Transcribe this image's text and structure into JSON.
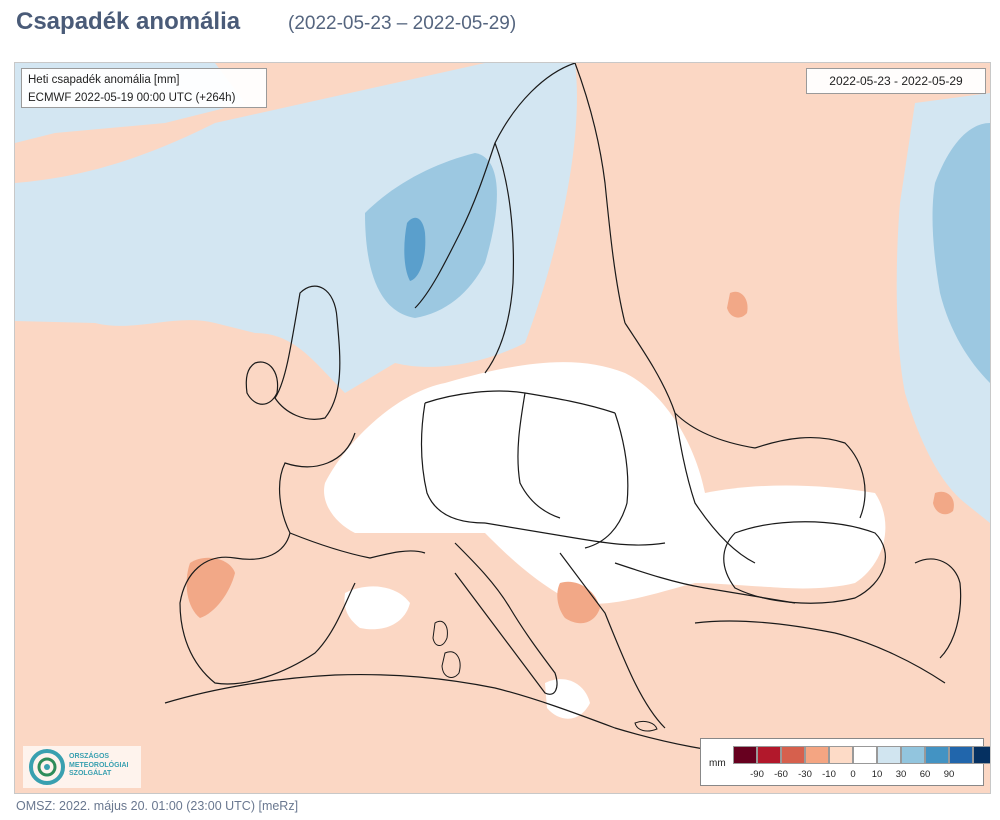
{
  "header": {
    "title": "Csapadék anomália",
    "subtitle": "(2022-05-23 – 2022-05-29)"
  },
  "map": {
    "info_line1": "Heti csapadék anomália [mm]",
    "info_line2": "ECMWF 2022-05-19 00:00 UTC (+264h)",
    "date_range": "2022-05-23 - 2022-05-29"
  },
  "legend": {
    "unit": "mm",
    "items": [
      {
        "label": "-90",
        "color": "#67001f"
      },
      {
        "label": "-60",
        "color": "#b2182b"
      },
      {
        "label": "-30",
        "color": "#d6604d"
      },
      {
        "label": "-10",
        "color": "#f4a582"
      },
      {
        "label": "0",
        "color": "#fddbc7"
      },
      {
        "label": "10",
        "color": "#ffffff"
      },
      {
        "label": "30",
        "color": "#d1e5f0"
      },
      {
        "label": "60",
        "color": "#92c5de"
      },
      {
        "label": "90",
        "color": "#4393c3"
      },
      {
        "label": "",
        "color": "#2166ac"
      },
      {
        "label": "",
        "color": "#053061"
      }
    ]
  },
  "logo": {
    "line1": "ORSZÁGOS",
    "line2": "METEOROLÓGIAI",
    "line3": "SZOLGÁLAT"
  },
  "footer": {
    "text": "OMSZ: 2022. május 20. 01:00 (23:00  UTC)  [meRz]"
  },
  "colors": {
    "dry": "#fbd7c4",
    "dry_strong": "#f2a887",
    "wet": "#d3e6f2",
    "wet_mid": "#9cc8e1",
    "wet_strong": "#5a9fcc",
    "border": "#1a1a1a",
    "title": "#4a5b78"
  }
}
